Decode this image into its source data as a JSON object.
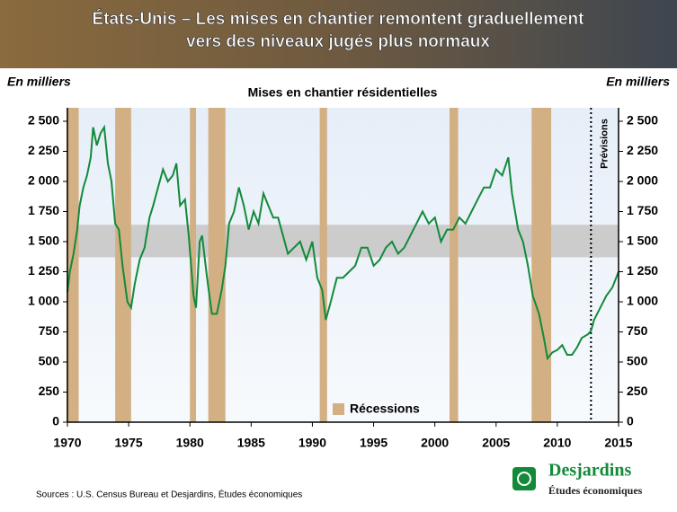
{
  "chart_data": {
    "type": "line",
    "title": [
      "États-Unis – Les mises en chantier remontent graduellement",
      "vers des niveaux jugés plus normaux"
    ],
    "subtitle": "Mises en chantier résidentielles",
    "y_label": "En milliers",
    "y2_label": "En milliers",
    "forecast_label": "Prévisions",
    "forecast_start": 2012.75,
    "recession_label": "Récessions",
    "recession_color": "#d2b084",
    "recessions": [
      [
        1969.92,
        1970.92
      ],
      [
        1973.9,
        1975.2
      ],
      [
        1980.0,
        1980.5
      ],
      [
        1981.5,
        1982.9
      ],
      [
        1990.6,
        1991.2
      ],
      [
        2001.2,
        2001.9
      ],
      [
        2007.9,
        2009.5
      ]
    ],
    "normal_band": [
      1370,
      1640
    ],
    "band_color": "#c8c8c8",
    "xlim": [
      1970,
      2015
    ],
    "xticks": [
      1970,
      1975,
      1980,
      1985,
      1990,
      1995,
      2000,
      2005,
      2010,
      2015
    ],
    "ylim": [
      0,
      2500
    ],
    "yticks": [
      0,
      250,
      500,
      750,
      {
        "value": 1000,
        "label": "1 000"
      },
      {
        "value": 1250,
        "label": "1 250"
      },
      {
        "value": 1500,
        "label": "1 500"
      },
      {
        "value": 1750,
        "label": "1 750"
      },
      {
        "value": 2000,
        "label": "2 000"
      },
      {
        "value": 2250,
        "label": "2 250"
      },
      {
        "value": 2500,
        "label": "2 500"
      }
    ],
    "y2lim": [
      0,
      2500
    ],
    "y2ticks": [
      0,
      250,
      500,
      750,
      {
        "value": 1000,
        "label": "1 000"
      },
      {
        "value": 1250,
        "label": "1 250"
      },
      {
        "value": 1500,
        "label": "1 500"
      },
      {
        "value": 1750,
        "label": "1 750"
      },
      {
        "value": 2000,
        "label": "2 000"
      },
      {
        "value": 2250,
        "label": "2 250"
      },
      {
        "value": 2500,
        "label": "2 500"
      }
    ],
    "series": [
      {
        "color": "#138a3a",
        "x": [
          1970.0,
          1970.2,
          1970.5,
          1970.8,
          1971.0,
          1971.3,
          1971.6,
          1971.9,
          1972.1,
          1972.4,
          1972.7,
          1973.0,
          1973.3,
          1973.6,
          1973.9,
          1974.2,
          1974.5,
          1974.9,
          1975.2,
          1975.5,
          1975.9,
          1976.3,
          1976.7,
          1977.0,
          1977.4,
          1977.8,
          1978.2,
          1978.6,
          1978.9,
          1979.2,
          1979.6,
          1979.9,
          1980.3,
          1980.5,
          1980.8,
          1981.0,
          1981.4,
          1981.8,
          1982.2,
          1982.6,
          1982.9,
          1983.2,
          1983.6,
          1984.0,
          1984.4,
          1984.8,
          1985.2,
          1985.6,
          1986.0,
          1986.4,
          1986.8,
          1987.2,
          1987.6,
          1988.0,
          1988.5,
          1989.0,
          1989.5,
          1990.0,
          1990.4,
          1990.8,
          1991.1,
          1991.5,
          1992.0,
          1992.5,
          1993.0,
          1993.5,
          1994.0,
          1994.5,
          1995.0,
          1995.5,
          1996.0,
          1996.5,
          1997.0,
          1997.5,
          1998.0,
          1998.5,
          1999.0,
          1999.5,
          2000.0,
          2000.5,
          2001.0,
          2001.5,
          2002.0,
          2002.5,
          2003.0,
          2003.5,
          2004.0,
          2004.5,
          2005.0,
          2005.5,
          2006.0,
          2006.3,
          2006.8,
          2007.2,
          2007.6,
          2008.0,
          2008.5,
          2008.9,
          2009.2,
          2009.6,
          2010.0,
          2010.4,
          2010.8,
          2011.2,
          2011.6,
          2012.0,
          2012.5,
          2012.75,
          2013.0,
          2013.5,
          2014.0,
          2014.5,
          2015.0
        ],
        "values": [
          1080,
          1250,
          1400,
          1600,
          1800,
          1950,
          2050,
          2200,
          2450,
          2300,
          2400,
          2450,
          2150,
          2000,
          1650,
          1600,
          1300,
          1000,
          950,
          1150,
          1350,
          1450,
          1700,
          1800,
          1950,
          2100,
          2000,
          2050,
          2150,
          1800,
          1850,
          1550,
          1050,
          950,
          1500,
          1550,
          1200,
          900,
          900,
          1100,
          1300,
          1650,
          1750,
          1950,
          1800,
          1600,
          1750,
          1650,
          1900,
          1800,
          1700,
          1700,
          1550,
          1400,
          1450,
          1500,
          1350,
          1500,
          1200,
          1100,
          850,
          1000,
          1200,
          1200,
          1250,
          1300,
          1450,
          1450,
          1300,
          1350,
          1450,
          1500,
          1400,
          1450,
          1550,
          1650,
          1750,
          1650,
          1700,
          1500,
          1600,
          1600,
          1700,
          1650,
          1750,
          1850,
          1950,
          1950,
          2100,
          2050,
          2200,
          1900,
          1600,
          1500,
          1300,
          1050,
          900,
          700,
          530,
          580,
          600,
          640,
          560,
          560,
          620,
          700,
          730,
          760,
          850,
          950,
          1050,
          1120,
          1250
        ]
      }
    ]
  },
  "footer": {
    "sources": "Sources : U.S. Census Bureau et Desjardins, Études économiques",
    "brand": "Desjardins",
    "brand_sub": "Études économiques"
  }
}
